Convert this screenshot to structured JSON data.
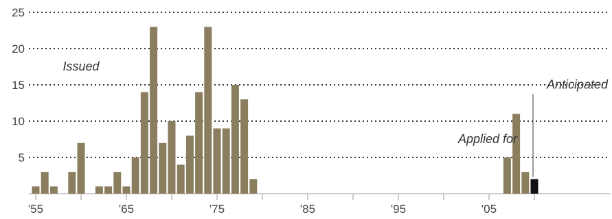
{
  "chart_data": {
    "type": "bar",
    "title": "",
    "xlabel": "",
    "ylabel": "",
    "ylim": [
      0,
      25
    ],
    "xlim": [
      1954.5,
      2010.5
    ],
    "grid": "dotted horizontal",
    "y_ticks": [
      5,
      10,
      15,
      20,
      25
    ],
    "x_ticks": [
      {
        "year": 1955,
        "label": "'55"
      },
      {
        "year": 1965,
        "label": "'65"
      },
      {
        "year": 1975,
        "label": "'75"
      },
      {
        "year": 1985,
        "label": "'85"
      },
      {
        "year": 1995,
        "label": "'95"
      },
      {
        "year": 2005,
        "label": "'05"
      }
    ],
    "series": [
      {
        "name": "Issued",
        "color": "#8a7e5e",
        "x": [
          1955,
          1956,
          1957,
          1959,
          1960,
          1962,
          1963,
          1964,
          1965,
          1966,
          1967,
          1968,
          1969,
          1970,
          1971,
          1972,
          1973,
          1974,
          1975,
          1976,
          1977,
          1978,
          1979,
          2007,
          2008,
          2009
        ],
        "values": [
          1,
          3,
          1,
          3,
          7,
          1,
          1,
          3,
          1,
          5,
          14,
          23,
          7,
          10,
          4,
          8,
          14,
          23,
          9,
          9,
          15,
          13,
          2,
          5,
          11,
          3
        ]
      },
      {
        "name": "Anticipated",
        "color": "#111111",
        "x": [
          2010
        ],
        "values": [
          2
        ]
      }
    ],
    "annotations": [
      {
        "text": "Issued",
        "x": 1960,
        "y": 17
      },
      {
        "text": "Applied for",
        "x": 2005,
        "y": 7
      },
      {
        "text": "Anticipated",
        "x": 2006.5,
        "y": 14.5
      }
    ]
  }
}
